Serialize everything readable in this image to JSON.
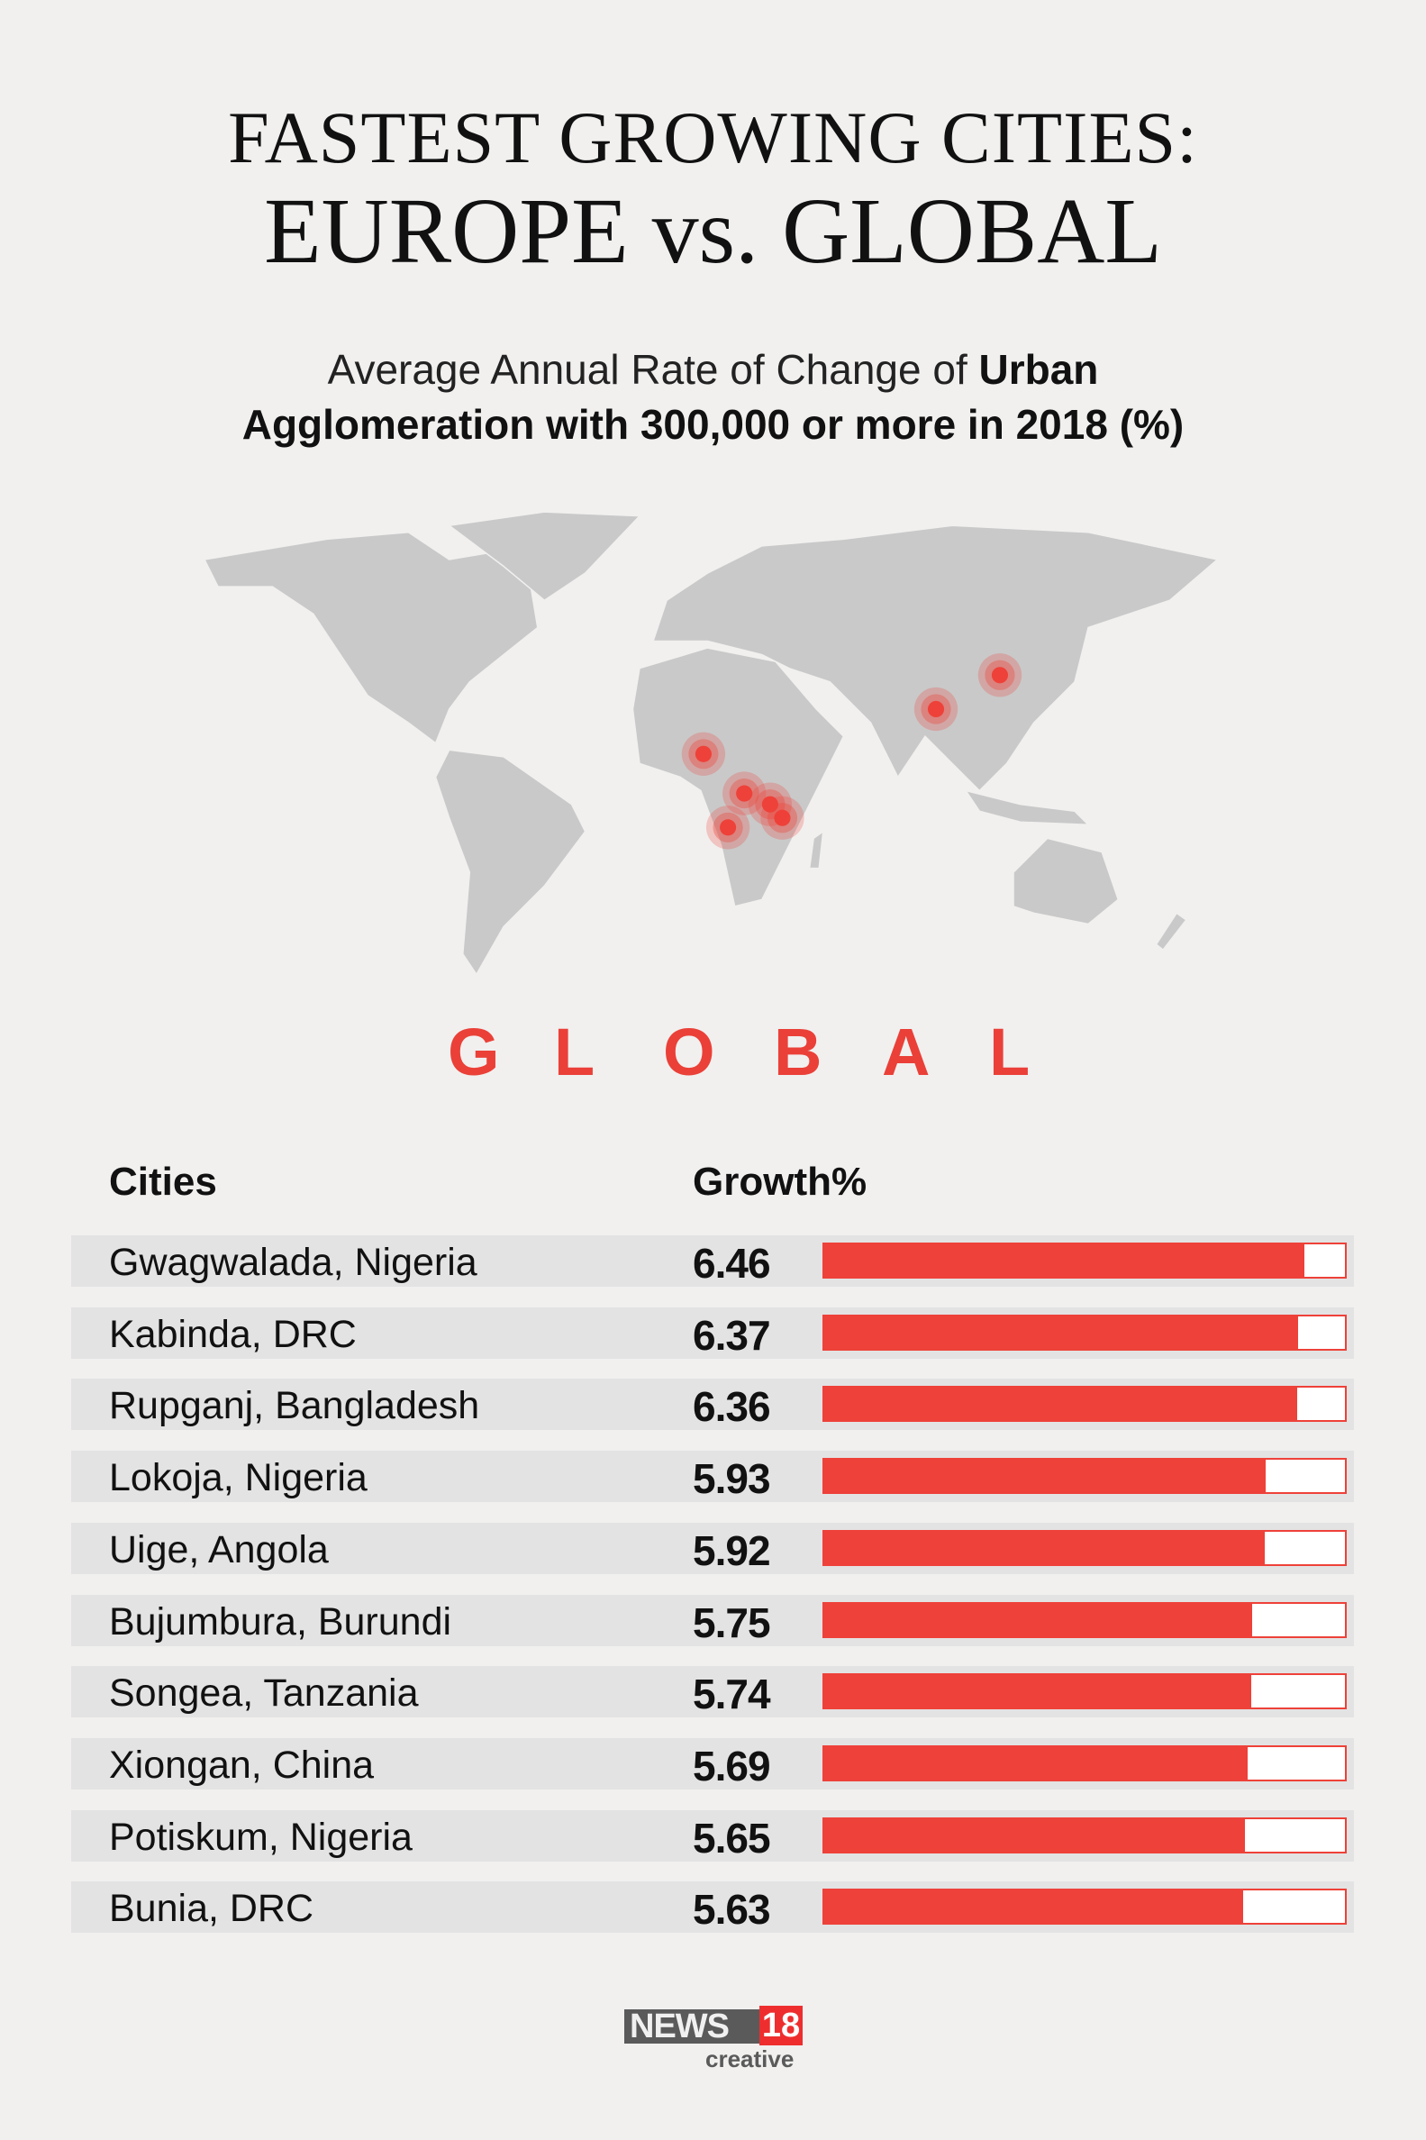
{
  "title": {
    "line1": "FASTEST GROWING CITIES:",
    "line2": "EUROPE vs. GLOBAL"
  },
  "subtitle": {
    "part1": "Average Annual Rate of Change of ",
    "part2": "Urban",
    "line2": "Agglomeration with 300,000 or more in 2018 (%)"
  },
  "section_label": [
    "G",
    "L",
    "O",
    "B",
    "A",
    "L"
  ],
  "colors": {
    "accent": "#ee4139",
    "map_land": "#c9c9c9",
    "row_bg": "#e3e3e3",
    "background": "#f1f0ef"
  },
  "map": {
    "type": "world-map",
    "marker_color": "#ee4139",
    "highlighted_regions": [
      "West Africa",
      "Central Africa",
      "East Africa",
      "Bangladesh",
      "China"
    ]
  },
  "chart_data": {
    "type": "bar",
    "orientation": "horizontal",
    "column_headers": [
      "Cities",
      "Growth%"
    ],
    "categories": [
      "Gwagwalada, Nigeria",
      "Kabinda, DRC",
      "Rupganj, Bangladesh",
      "Lokoja, Nigeria",
      "Uige, Angola",
      "Bujumbura, Burundi",
      "Songea, Tanzania",
      "Xiongan, China",
      "Potiskum, Nigeria",
      "Bunia, DRC"
    ],
    "values": [
      6.46,
      6.37,
      6.36,
      5.93,
      5.92,
      5.75,
      5.74,
      5.69,
      5.65,
      5.63
    ],
    "value_labels": [
      "6.46",
      "6.37",
      "6.36",
      "5.93",
      "5.92",
      "5.75",
      "5.74",
      "5.69",
      "5.65",
      "5.63"
    ],
    "xlim": [
      0,
      7
    ],
    "bar_color": "#ee4139"
  },
  "logo": {
    "brand": "NEWS",
    "number": "18",
    "tagline": "creative"
  }
}
